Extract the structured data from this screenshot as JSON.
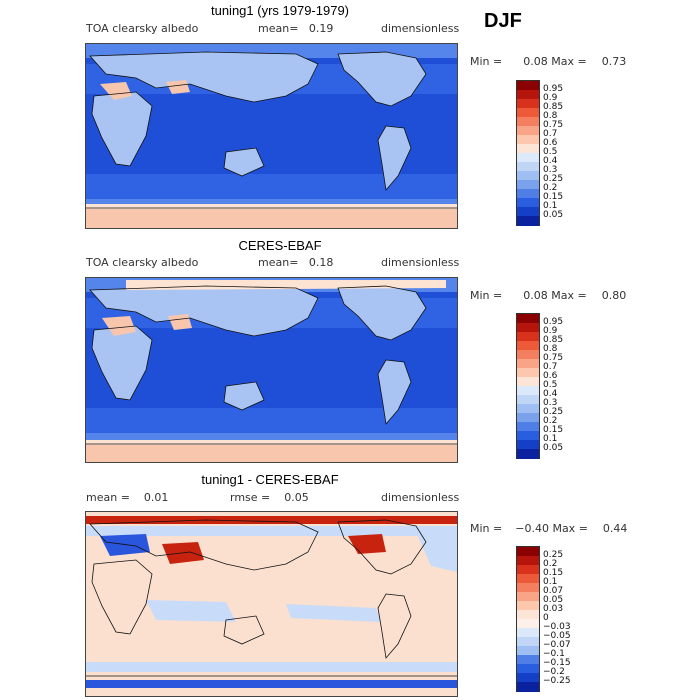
{
  "season": "DJF",
  "panels": [
    {
      "id": "model",
      "title": "tuning1 (yrs 1979-1979)",
      "left_label": "TOA clearsky albedo",
      "mid_label": "mean=   0.19",
      "right_label": "dimensionless",
      "min_label": "Min =",
      "min_value": "0.08",
      "max_label": "Max =",
      "max_value": "0.73",
      "colorbar": {
        "levels": [
          "0.95",
          "0.9",
          "0.85",
          "0.8",
          "0.75",
          "0.7",
          "0.6",
          "0.5",
          "0.4",
          "0.3",
          "0.25",
          "0.2",
          "0.15",
          "0.1",
          "0.05"
        ],
        "colors": [
          "#8b0000",
          "#b5150a",
          "#d8321c",
          "#ec5a3a",
          "#f47f5f",
          "#f9a487",
          "#fbc7ad",
          "#fce4d6",
          "#dce9fb",
          "#c1d6f7",
          "#9fbef2",
          "#7aa2ec",
          "#4f7fe6",
          "#2a5ee0",
          "#1440c8",
          "#0a22a0"
        ]
      }
    },
    {
      "id": "obs",
      "title": "CERES-EBAF",
      "left_label": "TOA clearsky albedo",
      "mid_label": "mean=   0.18",
      "right_label": "dimensionless",
      "min_label": "Min =",
      "min_value": "0.08",
      "max_label": "Max =",
      "max_value": "0.80",
      "colorbar": {
        "levels": [
          "0.95",
          "0.9",
          "0.85",
          "0.8",
          "0.75",
          "0.7",
          "0.6",
          "0.5",
          "0.4",
          "0.3",
          "0.25",
          "0.2",
          "0.15",
          "0.1",
          "0.05"
        ],
        "colors": [
          "#8b0000",
          "#b5150a",
          "#d8321c",
          "#ec5a3a",
          "#f47f5f",
          "#f9a487",
          "#fbc7ad",
          "#fce4d6",
          "#dce9fb",
          "#c1d6f7",
          "#9fbef2",
          "#7aa2ec",
          "#4f7fe6",
          "#2a5ee0",
          "#1440c8",
          "#0a22a0"
        ]
      }
    },
    {
      "id": "diff",
      "title": "tuning1 - CERES-EBAF",
      "left_label": "mean =    0.01",
      "mid_label": "rmse =    0.05",
      "right_label": "dimensionless",
      "min_label": "Min =",
      "min_value": "−0.40",
      "max_label": "Max =",
      "max_value": "0.44",
      "colorbar": {
        "levels": [
          "0.25",
          "0.2",
          "0.15",
          "0.1",
          "0.07",
          "0.05",
          "0.03",
          "0",
          "−0.03",
          "−0.05",
          "−0.07",
          "−0.1",
          "−0.15",
          "−0.2",
          "−0.25"
        ],
        "colors": [
          "#8b0000",
          "#b5150a",
          "#d8321c",
          "#ec5a3a",
          "#f47f5f",
          "#f9a487",
          "#fbc7ad",
          "#fce4d6",
          "#fdf0e8",
          "#dce9fb",
          "#c1d6f7",
          "#9fbef2",
          "#4f7fe6",
          "#2a5ee0",
          "#1440c8",
          "#0a22a0"
        ]
      }
    }
  ],
  "map_colors": {
    "ocean_deep": "#1f4fd6",
    "ocean_mid": "#2f63e3",
    "ocean_light": "#5585ea",
    "land_light": "#a9c4f3",
    "ice_pale": "#f7c6ad",
    "ice_bright": "#fde3d2",
    "diff_neutral": "#fbe0d0",
    "diff_negative": "#c8dbf8",
    "diff_strong_pos": "#c7230f",
    "diff_strong_neg": "#2a55dd",
    "coast": "#111111"
  }
}
